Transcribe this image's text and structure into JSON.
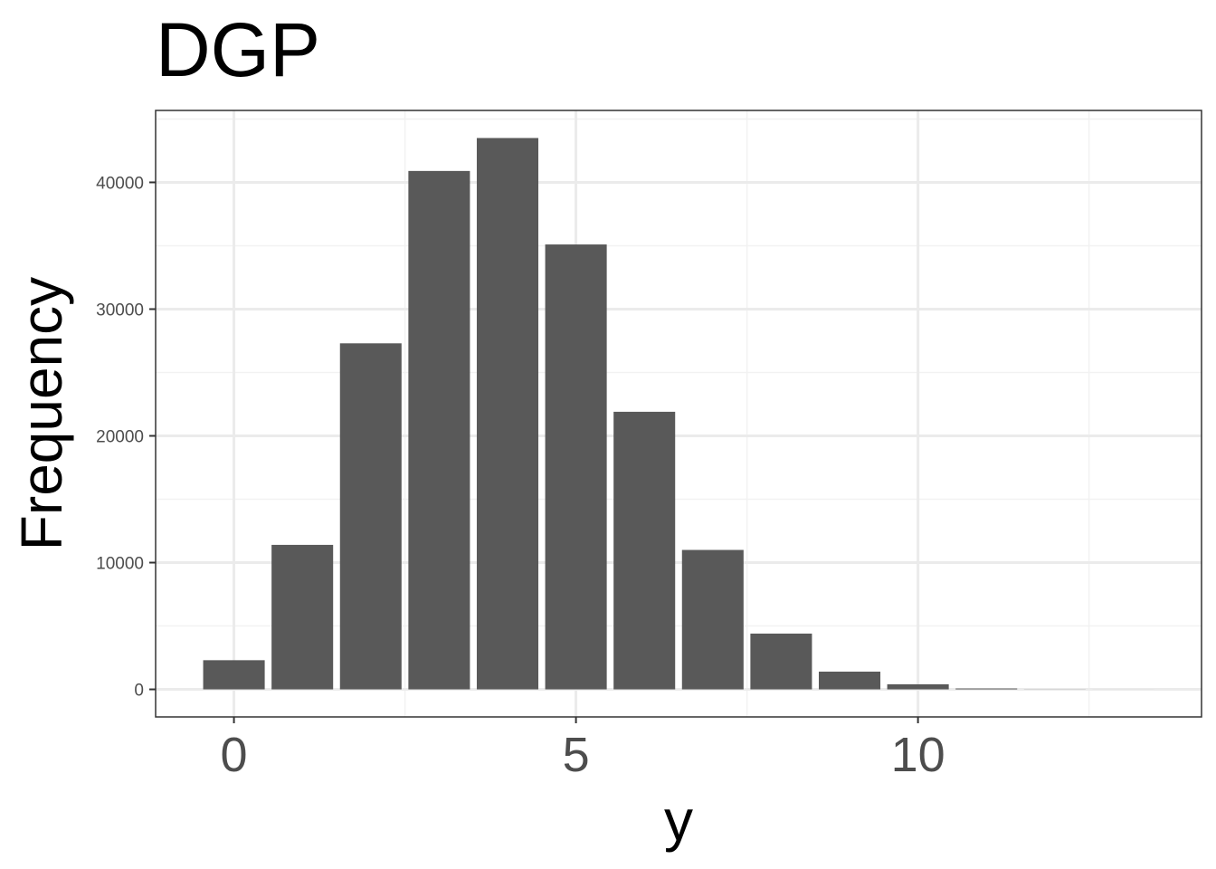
{
  "chart_data": {
    "type": "bar",
    "title": "DGP",
    "xlabel": "y",
    "ylabel": "Frequency",
    "x": [
      0,
      1,
      2,
      3,
      4,
      5,
      6,
      7,
      8,
      9,
      10,
      11,
      12,
      13
    ],
    "values": [
      2300,
      11400,
      27300,
      40900,
      43500,
      35100,
      21900,
      11000,
      4400,
      1400,
      400,
      70,
      10,
      2
    ],
    "color": "#595959",
    "xlim": [
      -1.145,
      14.145
    ],
    "xticks": [
      0,
      5,
      10
    ],
    "xminor": [
      2.5,
      7.5,
      12.5
    ],
    "ylim": [
      -2175,
      45675
    ],
    "yticks": [
      0,
      10000,
      20000,
      30000,
      40000
    ],
    "yminor": [
      5000,
      15000,
      25000,
      35000,
      45000
    ],
    "grid": true
  }
}
